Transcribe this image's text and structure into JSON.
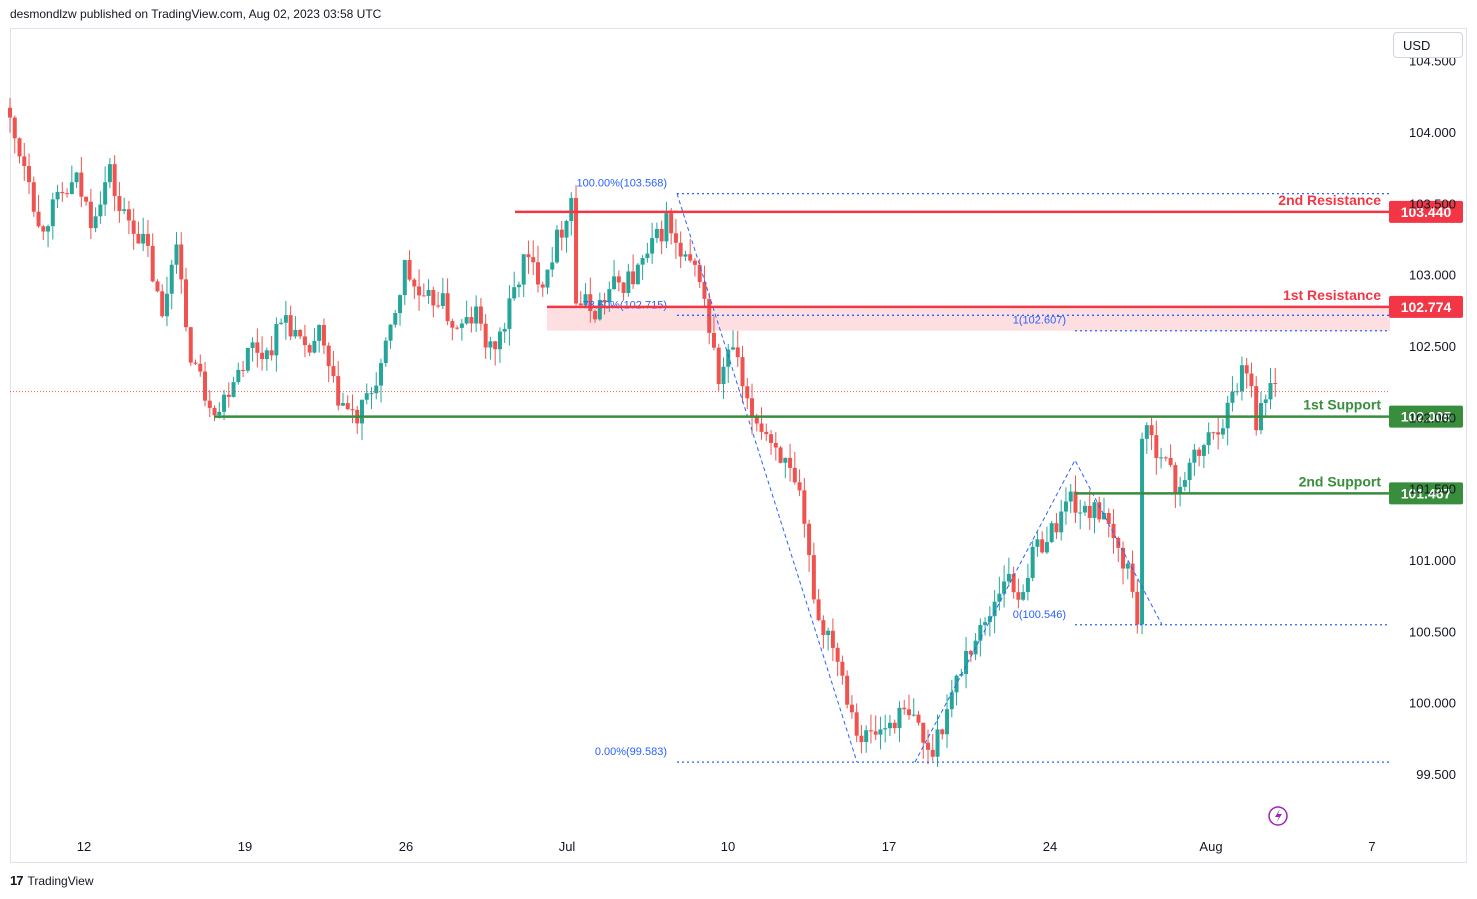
{
  "header": {
    "published": "desmondlzw published on TradingView.com, Aug 02, 2023 03:58 UTC"
  },
  "currency": "USD",
  "footer": {
    "brand": "TradingView"
  },
  "colors": {
    "up": "#26a69a",
    "down": "#ef5350",
    "resistance": "#f23645",
    "support": "#388e3c",
    "fib": "#2962ff",
    "zone": "#fcd7d9",
    "purple": "#9c27b0"
  },
  "chart_data": {
    "type": "candlestick",
    "ylim": [
      99.3,
      104.55
    ],
    "y_ticks": [
      "104.500",
      "104.000",
      "103.500",
      "103.000",
      "102.500",
      "102.000",
      "101.500",
      "101.000",
      "100.500",
      "100.000",
      "99.500"
    ],
    "x_ticks": [
      {
        "label": "12",
        "x": "2023-06-12"
      },
      {
        "label": "19",
        "x": "2023-06-19"
      },
      {
        "label": "26",
        "x": "2023-06-26"
      },
      {
        "label": "Jul",
        "x": "2023-07-03"
      },
      {
        "label": "10",
        "x": "2023-07-10"
      },
      {
        "label": "17",
        "x": "2023-07-17"
      },
      {
        "label": "24",
        "x": "2023-07-24"
      },
      {
        "label": "Aug",
        "x": "2023-07-31"
      },
      {
        "label": "7",
        "x": "2023-08-07"
      }
    ],
    "levels": [
      {
        "name": "2nd Resistance",
        "value": "103.440",
        "price": 103.44,
        "kind": "resistance"
      },
      {
        "name": "1st Resistance",
        "value": "102.774",
        "price": 102.774,
        "kind": "resistance"
      },
      {
        "name": "1st Support",
        "value": "102.005",
        "price": 102.005,
        "kind": "support"
      },
      {
        "name": "2nd Support",
        "value": "101.467",
        "price": 101.467,
        "kind": "support"
      }
    ],
    "fib_labels": [
      {
        "text": "100.00%(103.568)",
        "price": 103.568
      },
      {
        "text": "78.60%(102.715)",
        "price": 102.715
      },
      {
        "text": "0.00%(99.583)",
        "price": 99.583
      },
      {
        "text": "1(102.607)",
        "price": 102.607
      },
      {
        "text": "0(100.546)",
        "price": 100.546
      }
    ],
    "resistance_zone": [
      102.607,
      102.774
    ],
    "last_price": 102.18,
    "path": [
      [
        104.17,
        0
      ],
      [
        103.95,
        2
      ],
      [
        103.72,
        3
      ],
      [
        103.32,
        2
      ],
      [
        103.55,
        5
      ],
      [
        103.65,
        3
      ],
      [
        103.4,
        3
      ],
      [
        103.72,
        4
      ],
      [
        103.45,
        2
      ],
      [
        103.35,
        3
      ],
      [
        103.15,
        3
      ],
      [
        102.68,
        3
      ],
      [
        103.3,
        3
      ],
      [
        102.55,
        2
      ],
      [
        102.18,
        4
      ],
      [
        102.05,
        3
      ],
      [
        102.3,
        3
      ],
      [
        102.5,
        4
      ],
      [
        102.45,
        3
      ],
      [
        102.72,
        4
      ],
      [
        102.42,
        4
      ],
      [
        102.58,
        3
      ],
      [
        102.2,
        3
      ],
      [
        102.04,
        3
      ],
      [
        101.98,
        2
      ],
      [
        102.18,
        3
      ],
      [
        102.45,
        3
      ],
      [
        103.05,
        4
      ],
      [
        102.78,
        4
      ],
      [
        102.85,
        3
      ],
      [
        102.6,
        4
      ],
      [
        102.72,
        4
      ],
      [
        102.45,
        3
      ],
      [
        102.65,
        3
      ],
      [
        103.1,
        4
      ],
      [
        102.98,
        4
      ],
      [
        103.33,
        4
      ],
      [
        103.55,
        2
      ],
      [
        102.82,
        1
      ],
      [
        102.75,
        4
      ],
      [
        102.92,
        4
      ],
      [
        102.98,
        4
      ],
      [
        103.12,
        3
      ],
      [
        103.38,
        4
      ],
      [
        103.1,
        3
      ],
      [
        103.0,
        4
      ],
      [
        102.25,
        4
      ],
      [
        102.5,
        3
      ],
      [
        102.05,
        3
      ],
      [
        101.95,
        3
      ],
      [
        101.75,
        4
      ],
      [
        101.4,
        4
      ],
      [
        100.58,
        4
      ],
      [
        100.45,
        3
      ],
      [
        99.95,
        4
      ],
      [
        99.75,
        2
      ],
      [
        99.8,
        4
      ],
      [
        99.92,
        4
      ],
      [
        99.85,
        4
      ],
      [
        99.62,
        2
      ],
      [
        99.95,
        4
      ],
      [
        100.35,
        4
      ],
      [
        100.55,
        4
      ],
      [
        100.9,
        4
      ],
      [
        100.75,
        3
      ],
      [
        101.1,
        4
      ],
      [
        101.2,
        3
      ],
      [
        101.45,
        4
      ],
      [
        101.3,
        3
      ],
      [
        101.42,
        2
      ],
      [
        101.18,
        3
      ],
      [
        100.95,
        4
      ],
      [
        100.58,
        2
      ],
      [
        101.88,
        1
      ],
      [
        101.78,
        4
      ],
      [
        101.5,
        3
      ],
      [
        101.65,
        3
      ],
      [
        101.85,
        4
      ],
      [
        102.05,
        4
      ],
      [
        102.35,
        3
      ],
      [
        102.28,
        2
      ],
      [
        101.98,
        1
      ],
      [
        102.22,
        3
      ],
      [
        102.2,
        1
      ]
    ]
  }
}
